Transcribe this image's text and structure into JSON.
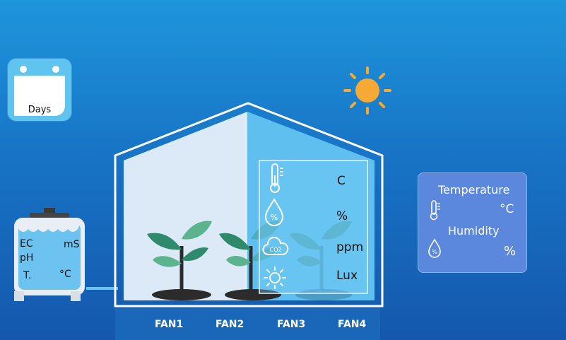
{
  "calendar": {
    "label": "Days"
  },
  "tank": {
    "ec": "EC",
    "ec_unit": "mS",
    "ph": "pH",
    "temp": "T.",
    "temp_unit": "°C"
  },
  "greenhouse": {
    "sensors": {
      "temperature_unit": "C",
      "humidity_unit": "%",
      "co2_unit": "ppm",
      "light_unit": "Lux",
      "co2_icon_text": "CO2"
    }
  },
  "panel": {
    "temperature_label": "Temperature",
    "temperature_unit": "°C",
    "humidity_label": "Humidity",
    "humidity_unit": "%"
  },
  "fans": [
    "FAN1",
    "FAN2",
    "FAN3",
    "FAN4"
  ],
  "colors": {
    "sun": "#f7a935",
    "leaf_dark": "#2f8a6c",
    "leaf_light": "#5cb48e",
    "water": "#6cc3f0"
  }
}
